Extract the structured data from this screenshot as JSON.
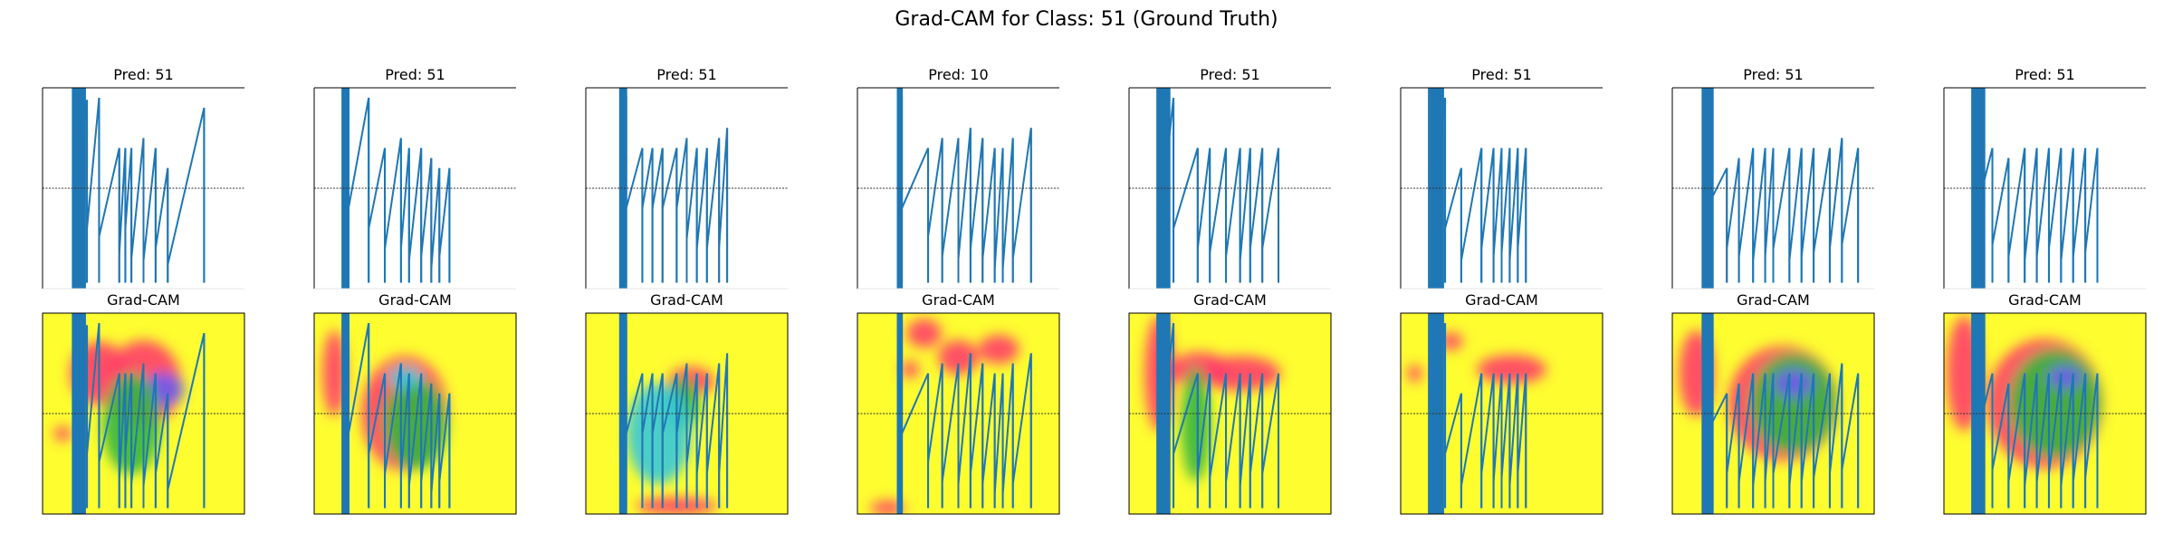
{
  "figure": {
    "suptitle": "Grad-CAM for Class: 51 (Ground Truth)"
  },
  "colors": {
    "signal": "#1f77b4",
    "grid_line": "#333333",
    "heat_base": "#fdfd30",
    "heat_red": "#ff3d6a",
    "heat_green": "#35b540",
    "heat_cyan": "#37c8d8",
    "heat_blue": "#6d5cf0"
  },
  "chart_data": [
    {
      "type": "line",
      "panel": "signal",
      "title": "Pred: 51",
      "reference_line_fraction": 0.5,
      "events": [
        [
          0.16,
          0.04,
          0.62
        ],
        [
          0.22,
          0.06,
          0.7
        ],
        [
          0.28,
          0.05,
          0.74
        ],
        [
          0.38,
          0.3,
          0.83
        ],
        [
          0.41,
          0.3,
          0.7
        ],
        [
          0.44,
          0.3,
          0.85
        ],
        [
          0.5,
          0.25,
          0.86
        ],
        [
          0.56,
          0.3,
          0.8
        ],
        [
          0.62,
          0.4,
          0.88
        ],
        [
          0.8,
          0.1,
          0.81
        ]
      ],
      "dense_band": [
        0.15,
        0.21
      ],
      "heat_blobs": [
        [
          0.28,
          0.3,
          0.2,
          0.22,
          "red"
        ],
        [
          0.5,
          0.35,
          0.26,
          0.3,
          "red"
        ],
        [
          0.6,
          0.38,
          0.14,
          0.12,
          "blue"
        ],
        [
          0.44,
          0.55,
          0.2,
          0.35,
          "green"
        ],
        [
          0.1,
          0.6,
          0.06,
          0.05,
          "red"
        ]
      ]
    },
    {
      "type": "line",
      "panel": "signal",
      "title": "Pred: 51",
      "reference_line_fraction": 0.5,
      "events": [
        [
          0.17,
          0.04,
          0.6
        ],
        [
          0.27,
          0.05,
          0.7
        ],
        [
          0.35,
          0.3,
          0.8
        ],
        [
          0.43,
          0.25,
          0.8
        ],
        [
          0.47,
          0.3,
          0.86
        ],
        [
          0.53,
          0.3,
          0.84
        ],
        [
          0.58,
          0.35,
          0.9
        ],
        [
          0.62,
          0.4,
          0.84
        ],
        [
          0.67,
          0.4,
          0.73
        ]
      ],
      "dense_band": [
        0.14,
        0.17
      ],
      "heat_blobs": [
        [
          0.1,
          0.3,
          0.08,
          0.3,
          "red"
        ],
        [
          0.45,
          0.5,
          0.3,
          0.4,
          "red"
        ],
        [
          0.5,
          0.55,
          0.22,
          0.32,
          "green"
        ],
        [
          0.45,
          0.32,
          0.12,
          0.08,
          "cyan"
        ]
      ]
    },
    {
      "type": "line",
      "panel": "signal",
      "title": "Pred: 51",
      "reference_line_fraction": 0.5,
      "events": [
        [
          0.2,
          0.04,
          0.6
        ],
        [
          0.28,
          0.3,
          0.6
        ],
        [
          0.33,
          0.3,
          0.6
        ],
        [
          0.38,
          0.3,
          0.6
        ],
        [
          0.45,
          0.3,
          0.6
        ],
        [
          0.5,
          0.25,
          0.75
        ],
        [
          0.55,
          0.3,
          0.8
        ],
        [
          0.6,
          0.3,
          0.8
        ],
        [
          0.66,
          0.25,
          0.8
        ],
        [
          0.7,
          0.2,
          0.9
        ]
      ],
      "dense_band": [
        0.17,
        0.2
      ],
      "heat_blobs": [
        [
          0.52,
          0.34,
          0.16,
          0.1,
          "red"
        ],
        [
          0.48,
          0.45,
          0.12,
          0.18,
          "green"
        ],
        [
          0.36,
          0.6,
          0.22,
          0.35,
          "cyan"
        ],
        [
          0.45,
          0.96,
          0.28,
          0.06,
          "red"
        ]
      ]
    },
    {
      "type": "line",
      "panel": "signal",
      "title": "Pred: 10",
      "reference_line_fraction": 0.5,
      "events": [
        [
          0.22,
          0.04,
          0.6
        ],
        [
          0.35,
          0.3,
          0.74
        ],
        [
          0.42,
          0.25,
          0.84
        ],
        [
          0.5,
          0.25,
          0.85
        ],
        [
          0.56,
          0.2,
          0.8
        ],
        [
          0.62,
          0.25,
          0.85
        ],
        [
          0.68,
          0.3,
          0.9
        ],
        [
          0.72,
          0.3,
          0.9
        ],
        [
          0.77,
          0.25,
          0.85
        ],
        [
          0.86,
          0.2,
          0.82
        ]
      ],
      "dense_band": [
        0.2,
        0.22
      ],
      "heat_blobs": [
        [
          0.33,
          0.1,
          0.12,
          0.1,
          "red"
        ],
        [
          0.5,
          0.22,
          0.14,
          0.12,
          "red"
        ],
        [
          0.7,
          0.18,
          0.14,
          0.1,
          "red"
        ],
        [
          0.26,
          0.28,
          0.06,
          0.06,
          "red"
        ],
        [
          0.15,
          0.97,
          0.12,
          0.05,
          "red"
        ]
      ]
    },
    {
      "type": "line",
      "panel": "signal",
      "title": "Pred: 51",
      "reference_line_fraction": 0.5,
      "events": [
        [
          0.16,
          0.04,
          0.62
        ],
        [
          0.22,
          0.05,
          0.7
        ],
        [
          0.34,
          0.3,
          0.8
        ],
        [
          0.4,
          0.3,
          0.82
        ],
        [
          0.48,
          0.3,
          0.84
        ],
        [
          0.55,
          0.3,
          0.86
        ],
        [
          0.6,
          0.3,
          0.8
        ],
        [
          0.66,
          0.3,
          0.8
        ],
        [
          0.74,
          0.3,
          0.82
        ]
      ],
      "dense_band": [
        0.14,
        0.2
      ],
      "heat_blobs": [
        [
          0.15,
          0.3,
          0.1,
          0.4,
          "red"
        ],
        [
          0.35,
          0.28,
          0.2,
          0.12,
          "red"
        ],
        [
          0.55,
          0.3,
          0.28,
          0.12,
          "red"
        ],
        [
          0.33,
          0.55,
          0.1,
          0.4,
          "green"
        ]
      ]
    },
    {
      "type": "line",
      "panel": "signal",
      "title": "Pred: 51",
      "reference_line_fraction": 0.5,
      "events": [
        [
          0.16,
          0.04,
          0.62
        ],
        [
          0.22,
          0.05,
          0.7
        ],
        [
          0.3,
          0.4,
          0.86
        ],
        [
          0.4,
          0.3,
          0.8
        ],
        [
          0.46,
          0.3,
          0.84
        ],
        [
          0.5,
          0.3,
          0.82
        ],
        [
          0.54,
          0.3,
          0.86
        ],
        [
          0.58,
          0.3,
          0.8
        ],
        [
          0.62,
          0.3,
          0.84
        ]
      ],
      "dense_band": [
        0.14,
        0.21
      ],
      "heat_blobs": [
        [
          0.25,
          0.14,
          0.08,
          0.06,
          "red"
        ],
        [
          0.55,
          0.28,
          0.24,
          0.1,
          "red"
        ],
        [
          0.07,
          0.3,
          0.05,
          0.06,
          "red"
        ]
      ]
    },
    {
      "type": "line",
      "panel": "signal",
      "title": "Pred: 51",
      "reference_line_fraction": 0.5,
      "events": [
        [
          0.16,
          0.04,
          0.62
        ],
        [
          0.27,
          0.4,
          0.8
        ],
        [
          0.33,
          0.35,
          0.84
        ],
        [
          0.4,
          0.3,
          0.86
        ],
        [
          0.46,
          0.3,
          0.84
        ],
        [
          0.5,
          0.3,
          0.8
        ],
        [
          0.58,
          0.3,
          0.86
        ],
        [
          0.64,
          0.3,
          0.84
        ],
        [
          0.7,
          0.3,
          0.82
        ],
        [
          0.78,
          0.3,
          0.8
        ],
        [
          0.84,
          0.25,
          0.78
        ],
        [
          0.92,
          0.3,
          0.6
        ]
      ],
      "dense_band": [
        0.15,
        0.2
      ],
      "heat_blobs": [
        [
          0.12,
          0.3,
          0.12,
          0.3,
          "red"
        ],
        [
          0.55,
          0.45,
          0.38,
          0.4,
          "red"
        ],
        [
          0.6,
          0.45,
          0.3,
          0.35,
          "green"
        ],
        [
          0.6,
          0.35,
          0.14,
          0.1,
          "blue"
        ]
      ]
    },
    {
      "type": "line",
      "panel": "signal",
      "title": "Pred: 51",
      "reference_line_fraction": 0.5,
      "events": [
        [
          0.16,
          0.04,
          0.62
        ],
        [
          0.24,
          0.3,
          0.78
        ],
        [
          0.32,
          0.35,
          0.84
        ],
        [
          0.4,
          0.3,
          0.86
        ],
        [
          0.46,
          0.3,
          0.84
        ],
        [
          0.52,
          0.3,
          0.8
        ],
        [
          0.58,
          0.3,
          0.86
        ],
        [
          0.64,
          0.3,
          0.84
        ],
        [
          0.7,
          0.3,
          0.82
        ],
        [
          0.76,
          0.3,
          0.8
        ]
      ],
      "dense_band": [
        0.14,
        0.2
      ],
      "heat_blobs": [
        [
          0.1,
          0.3,
          0.12,
          0.4,
          "red"
        ],
        [
          0.5,
          0.45,
          0.4,
          0.45,
          "red"
        ],
        [
          0.55,
          0.45,
          0.32,
          0.38,
          "green"
        ],
        [
          0.6,
          0.32,
          0.12,
          0.08,
          "blue"
        ]
      ]
    }
  ],
  "heat_panel_title": "Grad-CAM"
}
